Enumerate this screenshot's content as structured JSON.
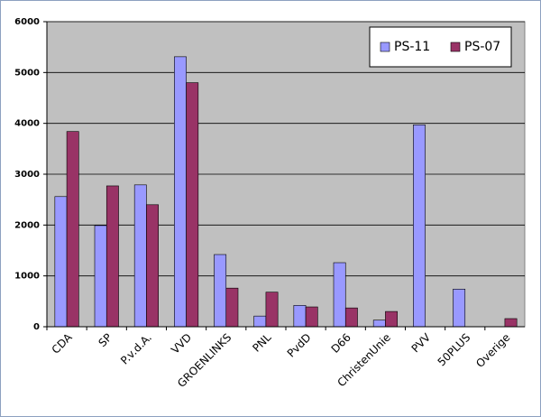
{
  "chart_data": {
    "type": "bar",
    "categories": [
      "CDA",
      "SP",
      "P.v.d.A.",
      "VVD",
      "GROENLINKS",
      "PNL",
      "PvdD",
      "D66",
      "ChristenUnie",
      "PVV",
      "50PLUS",
      "Overige"
    ],
    "series": [
      {
        "name": "PS-11",
        "color": "#9999ff",
        "values": [
          2560,
          1990,
          2790,
          5310,
          1420,
          210,
          420,
          1260,
          130,
          3970,
          740,
          null
        ]
      },
      {
        "name": "PS-07",
        "color": "#993366",
        "values": [
          3840,
          2770,
          2400,
          4800,
          760,
          680,
          390,
          370,
          300,
          null,
          null,
          160
        ]
      }
    ],
    "ylim": [
      0,
      6000
    ],
    "yticks": [
      0,
      1000,
      2000,
      3000,
      4000,
      5000,
      6000
    ],
    "grid": true,
    "legend": "top-right"
  }
}
